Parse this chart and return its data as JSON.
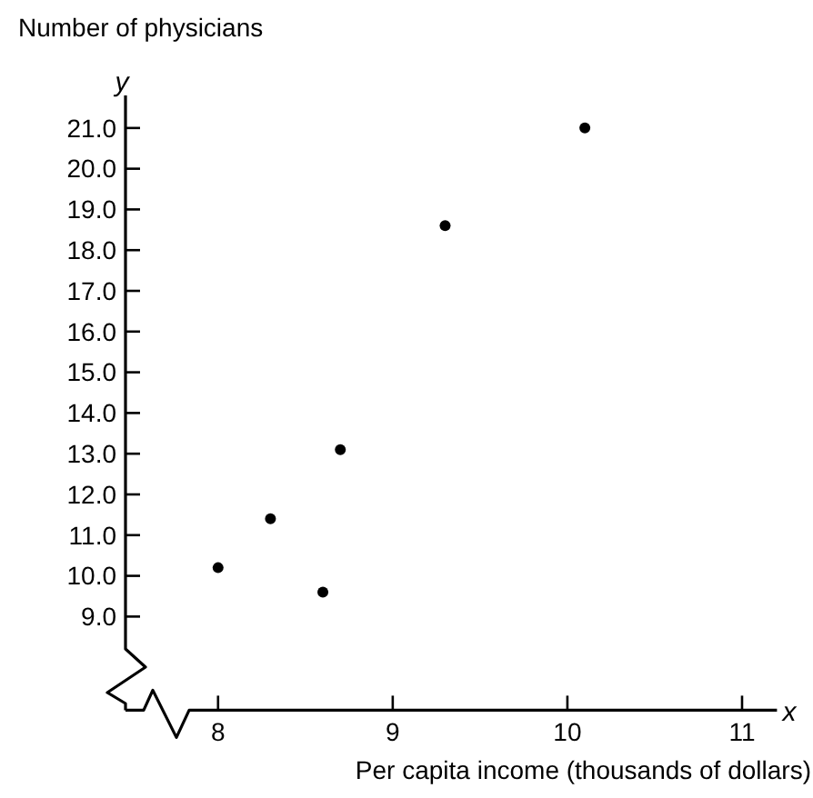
{
  "chart_data": {
    "type": "scatter",
    "xlabel": "Per capita income (thousands of dollars)",
    "ylabel": "Number of physicians",
    "annotations": [
      "y",
      "x"
    ],
    "x": [
      8.0,
      8.3,
      8.6,
      8.7,
      9.3,
      10.1
    ],
    "values": [
      10.2,
      11.4,
      9.6,
      13.1,
      18.6,
      21.0
    ],
    "color": "#000000",
    "marker": "circle",
    "grid": false,
    "xlim": [
      7.47,
      11.2
    ],
    "xticks": [
      8,
      9,
      10,
      11
    ],
    "ylim": [
      6.7,
      21.8
    ],
    "yticks": [
      {
        "value": 9,
        "label": "9.0"
      },
      {
        "value": 10,
        "label": "10.0"
      },
      {
        "value": 11,
        "label": "11.0"
      },
      {
        "value": 12,
        "label": "12.0"
      },
      {
        "value": 13,
        "label": "13.0"
      },
      {
        "value": 14,
        "label": "14.0"
      },
      {
        "value": 15,
        "label": "15.0"
      },
      {
        "value": 16,
        "label": "16.0"
      },
      {
        "value": 17,
        "label": "17.0"
      },
      {
        "value": 18,
        "label": "18.0"
      },
      {
        "value": 19,
        "label": "19.0"
      },
      {
        "value": 20,
        "label": "20.0"
      },
      {
        "value": 21,
        "label": "21.0"
      }
    ]
  }
}
